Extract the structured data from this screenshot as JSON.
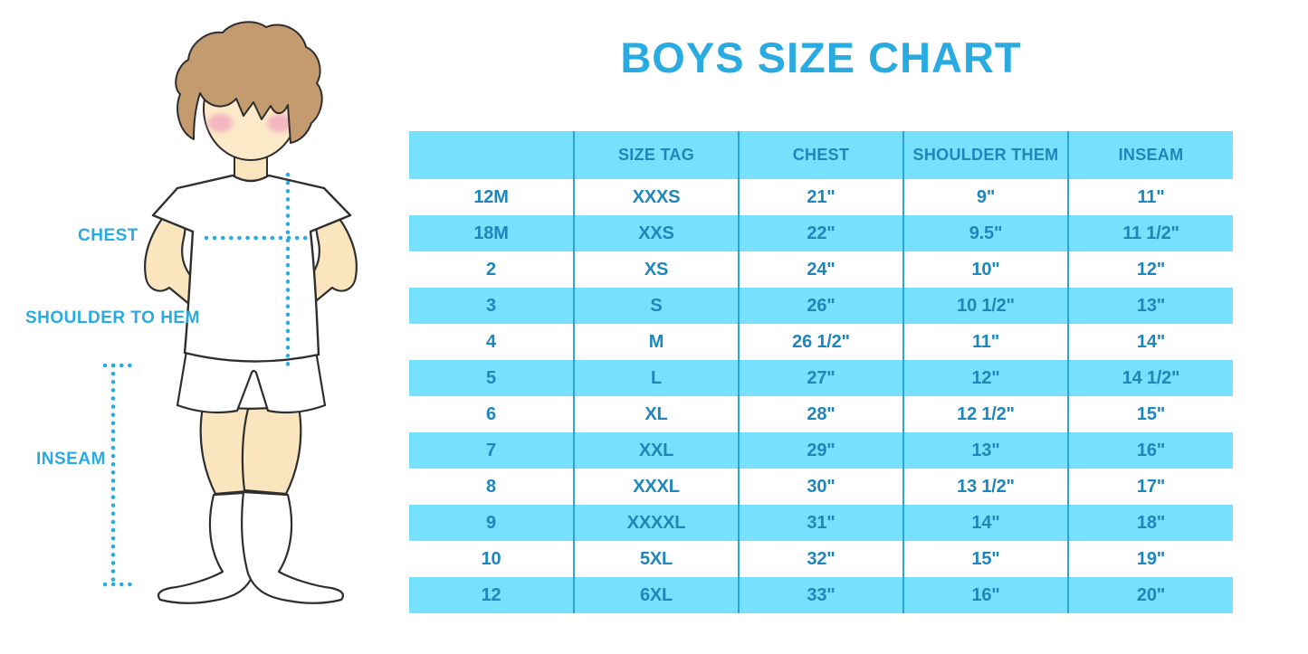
{
  "page": {
    "title": "BOYS SIZE CHART"
  },
  "colors": {
    "title_blue": "#29ABE2",
    "band_blue": "#76E1FC",
    "table_text_blue": "#1E86BB",
    "divider_blue": "#2BA5D8",
    "dotted_line_blue": "#29ABE2",
    "label_blue": "#29ABE2",
    "skin_tone": "#FBE5BE",
    "hair_brown": "#C39B6E",
    "blush_pink": "#F2A8BD"
  },
  "figure": {
    "chest_label": "CHEST",
    "shoulder_to_hem_label": "SHOULDER TO HEM",
    "inseam_label": "INSEAM"
  },
  "chart_data": {
    "type": "table",
    "title": "BOYS SIZE CHART",
    "columns": [
      "",
      "SIZE TAG",
      "CHEST",
      "SHOULDER THEM",
      "INSEAM"
    ],
    "rows": [
      [
        "12M",
        "XXXS",
        "21\"",
        "9\"",
        "11\""
      ],
      [
        "18M",
        "XXS",
        "22\"",
        "9.5\"",
        "11 1/2\""
      ],
      [
        "2",
        "XS",
        "24\"",
        "10\"",
        "12\""
      ],
      [
        "3",
        "S",
        "26\"",
        "10 1/2\"",
        "13\""
      ],
      [
        "4",
        "M",
        "26 1/2\"",
        "11\"",
        "14\""
      ],
      [
        "5",
        "L",
        "27\"",
        "12\"",
        "14 1/2\""
      ],
      [
        "6",
        "XL",
        "28\"",
        "12 1/2\"",
        "15\""
      ],
      [
        "7",
        "XXL",
        "29\"",
        "13\"",
        "16\""
      ],
      [
        "8",
        "XXXL",
        "30\"",
        "13 1/2\"",
        "17\""
      ],
      [
        "9",
        "XXXXL",
        "31\"",
        "14\"",
        "18\""
      ],
      [
        "10",
        "5XL",
        "32\"",
        "15\"",
        "19\""
      ],
      [
        "12",
        "6XL",
        "33\"",
        "16\"",
        "20\""
      ]
    ],
    "row_striping": [
      "#FFFFFF",
      "#76E1FC"
    ],
    "layout": {
      "header_background": "#76E1FC",
      "grid": "vertical-dividers-only"
    }
  }
}
